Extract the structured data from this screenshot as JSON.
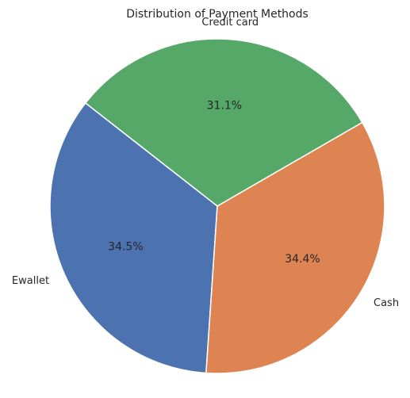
{
  "chart_data": {
    "type": "pie",
    "title": "Distribution of Payment Methods",
    "slices": [
      {
        "label": "Credit card",
        "percent_label": "31.1%",
        "value": 31.1,
        "color": "#55a868"
      },
      {
        "label": "Ewallet",
        "percent_label": "34.5%",
        "value": 34.5,
        "color": "#4c72b0"
      },
      {
        "label": "Cash",
        "percent_label": "34.4%",
        "value": 34.4,
        "color": "#dd8452"
      }
    ],
    "legend": false
  }
}
